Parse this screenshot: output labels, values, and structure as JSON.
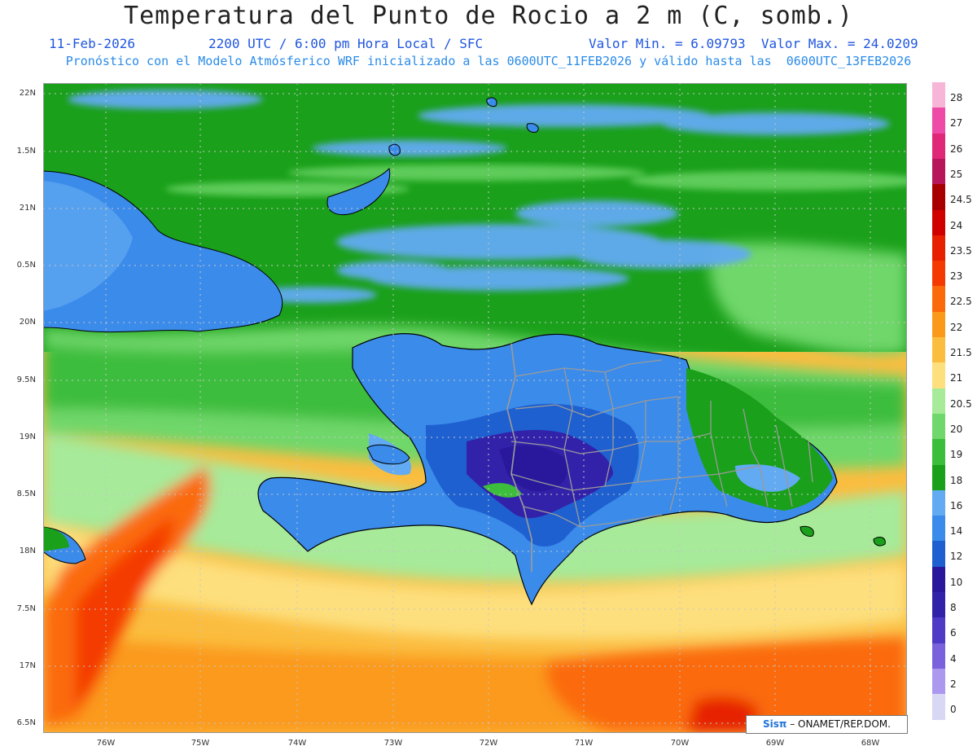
{
  "header": {
    "title": "Temperatura del Punto de Rocio a 2 m (C, somb.)",
    "date": "11-Feb-2026",
    "time": "2200 UTC / 6:00 pm Hora Local / SFC",
    "minmax": "Valor Min. = 6.09793  Valor Max. = 24.0209",
    "model": "Pronóstico con el Modelo Atmósferico WRF inicializado a las 0600UTC_11FEB2026 y válido hasta las  0600UTC_13FEB2026"
  },
  "lat_labels": [
    "22N",
    "1.5N",
    "21N",
    "0.5N",
    "20N",
    "9.5N",
    "19N",
    "8.5N",
    "18N",
    "7.5N",
    "17N",
    "6.5N"
  ],
  "lon_labels": [
    "76W",
    "75W",
    "74W",
    "73W",
    "72W",
    "71W",
    "70W",
    "69W",
    "68W"
  ],
  "colorbar": {
    "labels": [
      "28",
      "27",
      "26",
      "25",
      "24.5",
      "24",
      "23.5",
      "23",
      "22.5",
      "22",
      "21.5",
      "21",
      "20.5",
      "20",
      "19",
      "18",
      "16",
      "14",
      "12",
      "10",
      "8",
      "6",
      "4",
      "2",
      "0"
    ],
    "colors": [
      "#f7b6d8",
      "#ee4aa8",
      "#df2878",
      "#b8165a",
      "#a80000",
      "#d00000",
      "#e62000",
      "#f43a00",
      "#fb6a0a",
      "#fb9a1a",
      "#fbbd3f",
      "#fddf7d",
      "#a6ea9a",
      "#6fd76b",
      "#3cbd3c",
      "#1aa01a",
      "#62aaf2",
      "#3b8bea",
      "#1e60d0",
      "#2a189c",
      "#3222aa",
      "#4e3ac4",
      "#7a62dc",
      "#ac98ee",
      "#d8d8f4"
    ]
  },
  "credit": {
    "brand": "Sisπ",
    "text": " – ONAMET/REP.DOM."
  }
}
